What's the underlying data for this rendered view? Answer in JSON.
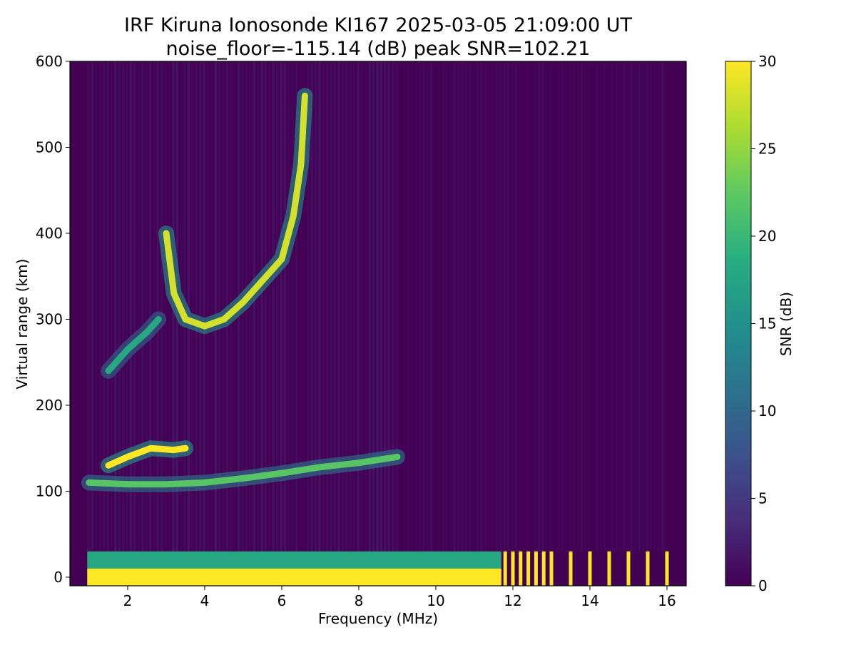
{
  "chart_data": {
    "type": "heatmap",
    "title": "IRF Kiruna Ionosonde KI167 2025-03-05 21:09:00  UT",
    "subtitle": "noise_floor=-115.14 (dB) peak SNR=102.21",
    "xlabel": "Frequency (MHz)",
    "ylabel": "Virtual range (km)",
    "xlim": [
      0.5,
      16.5
    ],
    "ylim": [
      -10,
      600
    ],
    "xticks": [
      2,
      4,
      6,
      8,
      10,
      12,
      14,
      16
    ],
    "yticks": [
      0,
      100,
      200,
      300,
      400,
      500,
      600
    ],
    "colorbar": {
      "label": "SNR (dB)",
      "range": [
        0,
        30
      ],
      "ticks": [
        0,
        5,
        10,
        15,
        20,
        25,
        30
      ],
      "colormap": "viridis"
    },
    "data_x_range_MHz": [
      0.95,
      16.0
    ],
    "traces": [
      {
        "name": "F-layer trace",
        "points": [
          [
            3.0,
            400
          ],
          [
            3.2,
            330
          ],
          [
            3.5,
            300
          ],
          [
            4.0,
            292
          ],
          [
            4.5,
            300
          ],
          [
            5.0,
            320
          ],
          [
            5.5,
            345
          ],
          [
            6.0,
            370
          ],
          [
            6.3,
            420
          ],
          [
            6.5,
            480
          ],
          [
            6.6,
            560
          ]
        ],
        "snr": 28
      },
      {
        "name": "E-layer trace",
        "points": [
          [
            1.0,
            110
          ],
          [
            2.0,
            108
          ],
          [
            3.0,
            108
          ],
          [
            4.0,
            110
          ],
          [
            5.0,
            115
          ],
          [
            6.0,
            121
          ],
          [
            7.0,
            128
          ],
          [
            8.0,
            133
          ],
          [
            9.0,
            140
          ]
        ],
        "snr": 22
      },
      {
        "name": "Es cluster",
        "points": [
          [
            1.5,
            130
          ],
          [
            2.0,
            140
          ],
          [
            2.6,
            150
          ],
          [
            3.2,
            148
          ],
          [
            3.5,
            150
          ]
        ],
        "snr": 30
      },
      {
        "name": "oblique trace",
        "points": [
          [
            1.5,
            240
          ],
          [
            2.0,
            265
          ],
          [
            2.5,
            285
          ],
          [
            2.8,
            300
          ]
        ],
        "snr": 18
      }
    ],
    "ground_echo": {
      "range_km": [
        -10,
        30
      ],
      "freq_MHz": [
        0.95,
        11.7
      ],
      "snr": 30
    },
    "spikes_MHz": [
      11.8,
      12.0,
      12.2,
      12.4,
      12.6,
      12.8,
      13.0,
      13.5,
      14.0,
      14.5,
      15.0,
      15.5,
      16.0
    ]
  }
}
